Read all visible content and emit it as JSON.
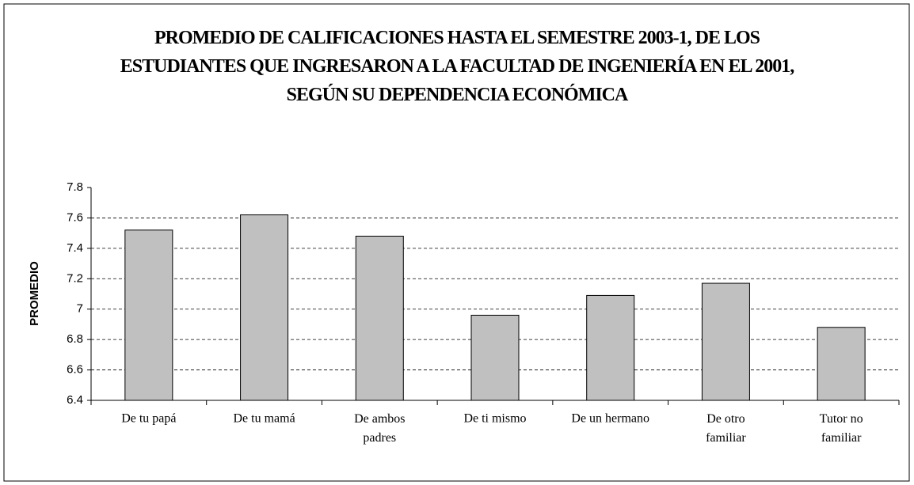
{
  "chart_data": {
    "type": "bar",
    "title": "PROMEDIO DE CALIFICACIONES HASTA EL SEMESTRE 2003-1, DE LOS ESTUDIANTES QUE INGRESARON A LA FACULTAD DE INGENIERÍA EN EL 2001, SEGÚN SU DEPENDENCIA ECONÓMICA",
    "y_label": "PROMEDIO",
    "categories": [
      "De tu papá",
      "De tu mamá",
      "De ambos padres",
      "De ti mismo",
      "De un hermano",
      "De otro familiar",
      "Tutor no familiar"
    ],
    "values": [
      7.52,
      7.62,
      7.48,
      6.96,
      7.09,
      7.17,
      6.88
    ],
    "color": "#c0c0c0",
    "ylim": [
      6.4,
      7.8
    ],
    "yticks": [
      6.4,
      6.6,
      6.8,
      7,
      7.2,
      7.4,
      7.6,
      7.8
    ],
    "grid": true
  }
}
